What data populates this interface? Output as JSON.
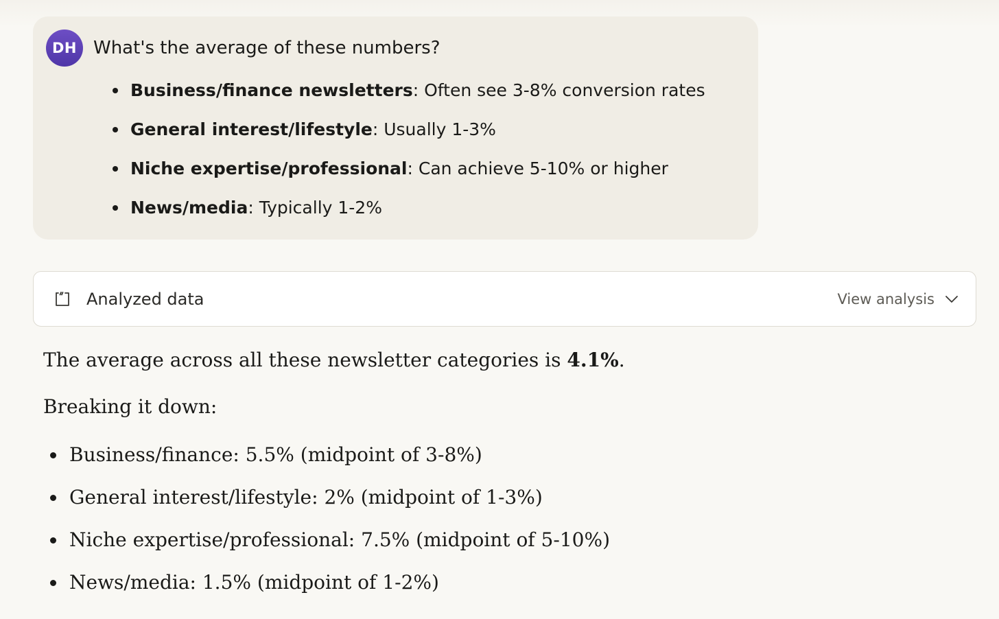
{
  "user_message": {
    "avatar_initials": "DH",
    "question": "What's the average of these numbers?",
    "items": [
      {
        "label": "Business/finance newsletters",
        "text": ": Often see 3-8% conversion rates"
      },
      {
        "label": "General interest/lifestyle",
        "text": ": Usually 1-3%"
      },
      {
        "label": "Niche expertise/professional",
        "text": ": Can achieve 5-10% or higher"
      },
      {
        "label": "News/media",
        "text": ": Typically 1-2%"
      }
    ]
  },
  "analysis_card": {
    "title": "Analyzed data",
    "action_label": "View analysis",
    "icon": "code-bracket-icon",
    "action_icon": "chevron-down-icon"
  },
  "response": {
    "summary_prefix": "The average across all these newsletter categories is ",
    "summary_value": "4.1%",
    "summary_suffix": ".",
    "breakdown_heading": "Breaking it down:",
    "breakdown": [
      "Business/finance: 5.5% (midpoint of 3-8%)",
      "General interest/lifestyle: 2% (midpoint of 1-3%)",
      "Niche expertise/professional: 7.5% (midpoint of 5-10%)",
      "News/media: 1.5% (midpoint of 1-2%)"
    ]
  },
  "colors": {
    "page_background": "#f9f8f4",
    "user_bubble": "#f0ede5",
    "avatar": "#5a3fb5",
    "card_background": "#ffffff",
    "card_border": "#dedbd2",
    "muted_text": "#5d5b55"
  }
}
